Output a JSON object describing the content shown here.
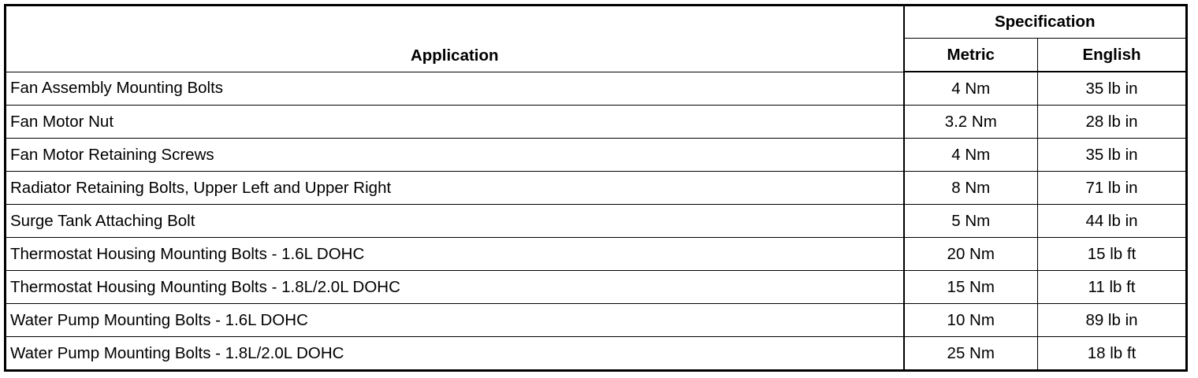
{
  "table": {
    "headers": {
      "application": "Application",
      "specification": "Specification",
      "metric": "Metric",
      "english": "English"
    },
    "rows": [
      {
        "application": "Fan Assembly Mounting Bolts",
        "metric": "4 Nm",
        "english": "35 lb in"
      },
      {
        "application": "Fan Motor Nut",
        "metric": "3.2 Nm",
        "english": "28 lb in"
      },
      {
        "application": "Fan Motor Retaining Screws",
        "metric": "4 Nm",
        "english": "35 lb in"
      },
      {
        "application": "Radiator Retaining Bolts, Upper Left and Upper Right",
        "metric": "8 Nm",
        "english": "71 lb in"
      },
      {
        "application": "Surge Tank Attaching Bolt",
        "metric": "5 Nm",
        "english": "44 lb in"
      },
      {
        "application": "Thermostat Housing Mounting Bolts - 1.6L DOHC",
        "metric": "20 Nm",
        "english": "15 lb ft"
      },
      {
        "application": "Thermostat Housing Mounting Bolts - 1.8L/2.0L DOHC",
        "metric": "15 Nm",
        "english": "11 lb ft"
      },
      {
        "application": "Water Pump Mounting Bolts - 1.6L DOHC",
        "metric": "10 Nm",
        "english": "89 lb in"
      },
      {
        "application": "Water Pump Mounting Bolts - 1.8L/2.0L DOHC",
        "metric": "25 Nm",
        "english": "18 lb ft"
      }
    ]
  }
}
